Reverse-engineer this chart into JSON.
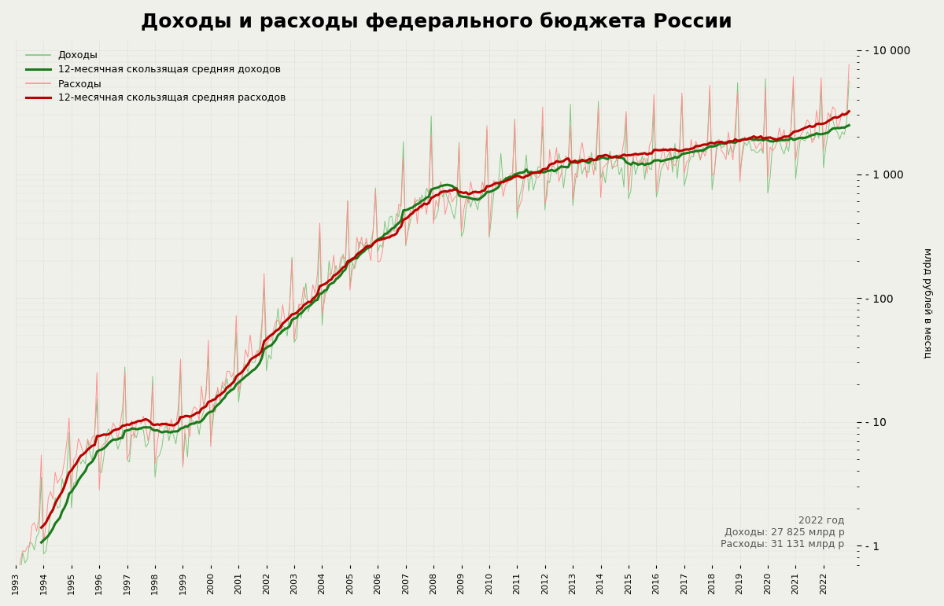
{
  "title": "Доходы и расходы федерального бюджета России",
  "ylabel": "млрд рублей в месяц",
  "annotation_text": "2022 год\nДоходы: 27 825 млрд р\nРасходы: 31 131 млрд р",
  "legend_entries": [
    "Доходы",
    "12-месячная скользящая средняя доходов",
    "Расходы",
    "12-месячная скользящая средняя расходов"
  ],
  "color_income_raw": "#7DC87D",
  "color_income_ma": "#1A7A1A",
  "color_expense_raw": "#FF9090",
  "color_expense_ma": "#BB0000",
  "yticks_major": [
    1,
    10,
    100,
    1000,
    10000
  ],
  "ytick_labels": [
    "- 1",
    "- 10",
    "- 100",
    "- 1 000",
    "- 10 000"
  ],
  "ylim_log": [
    0.7,
    12000
  ],
  "xlim": [
    1993.0,
    2023.2
  ],
  "background_color": "#f0f0ea",
  "grid_color": "#cccccc",
  "title_fontsize": 18,
  "legend_fontsize": 9,
  "annotation_fontsize": 9
}
